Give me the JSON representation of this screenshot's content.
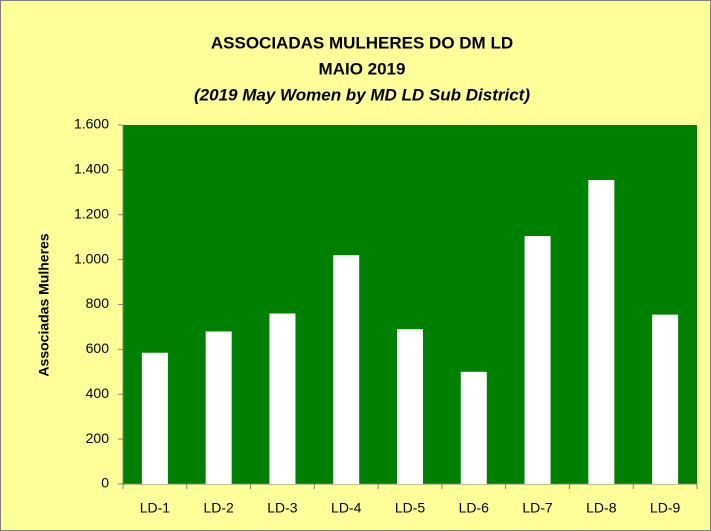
{
  "chart_data": {
    "type": "bar",
    "title": [
      "ASSOCIADAS MULHERES DO DM LD",
      "MAIO 2019",
      "(2019 May Women by MD LD Sub District)"
    ],
    "y_label": "Associadas  Mulheres",
    "categories": [
      "LD-1",
      "LD-2",
      "LD-3",
      "LD-4",
      "LD-5",
      "LD-6",
      "LD-7",
      "LD-8",
      "LD-9"
    ],
    "values": [
      585,
      680,
      760,
      1020,
      690,
      500,
      1105,
      1355,
      755
    ],
    "color": "#ffffff",
    "plot_background": "#008000",
    "ylim": [
      0,
      1600
    ],
    "yticks": [
      0,
      200,
      400,
      600,
      800,
      {
        "value": 1000,
        "label": "1.000"
      },
      {
        "value": 1200,
        "label": "1.200"
      },
      {
        "value": 1400,
        "label": "1.400"
      },
      {
        "value": 1600,
        "label": "1.600"
      }
    ]
  }
}
